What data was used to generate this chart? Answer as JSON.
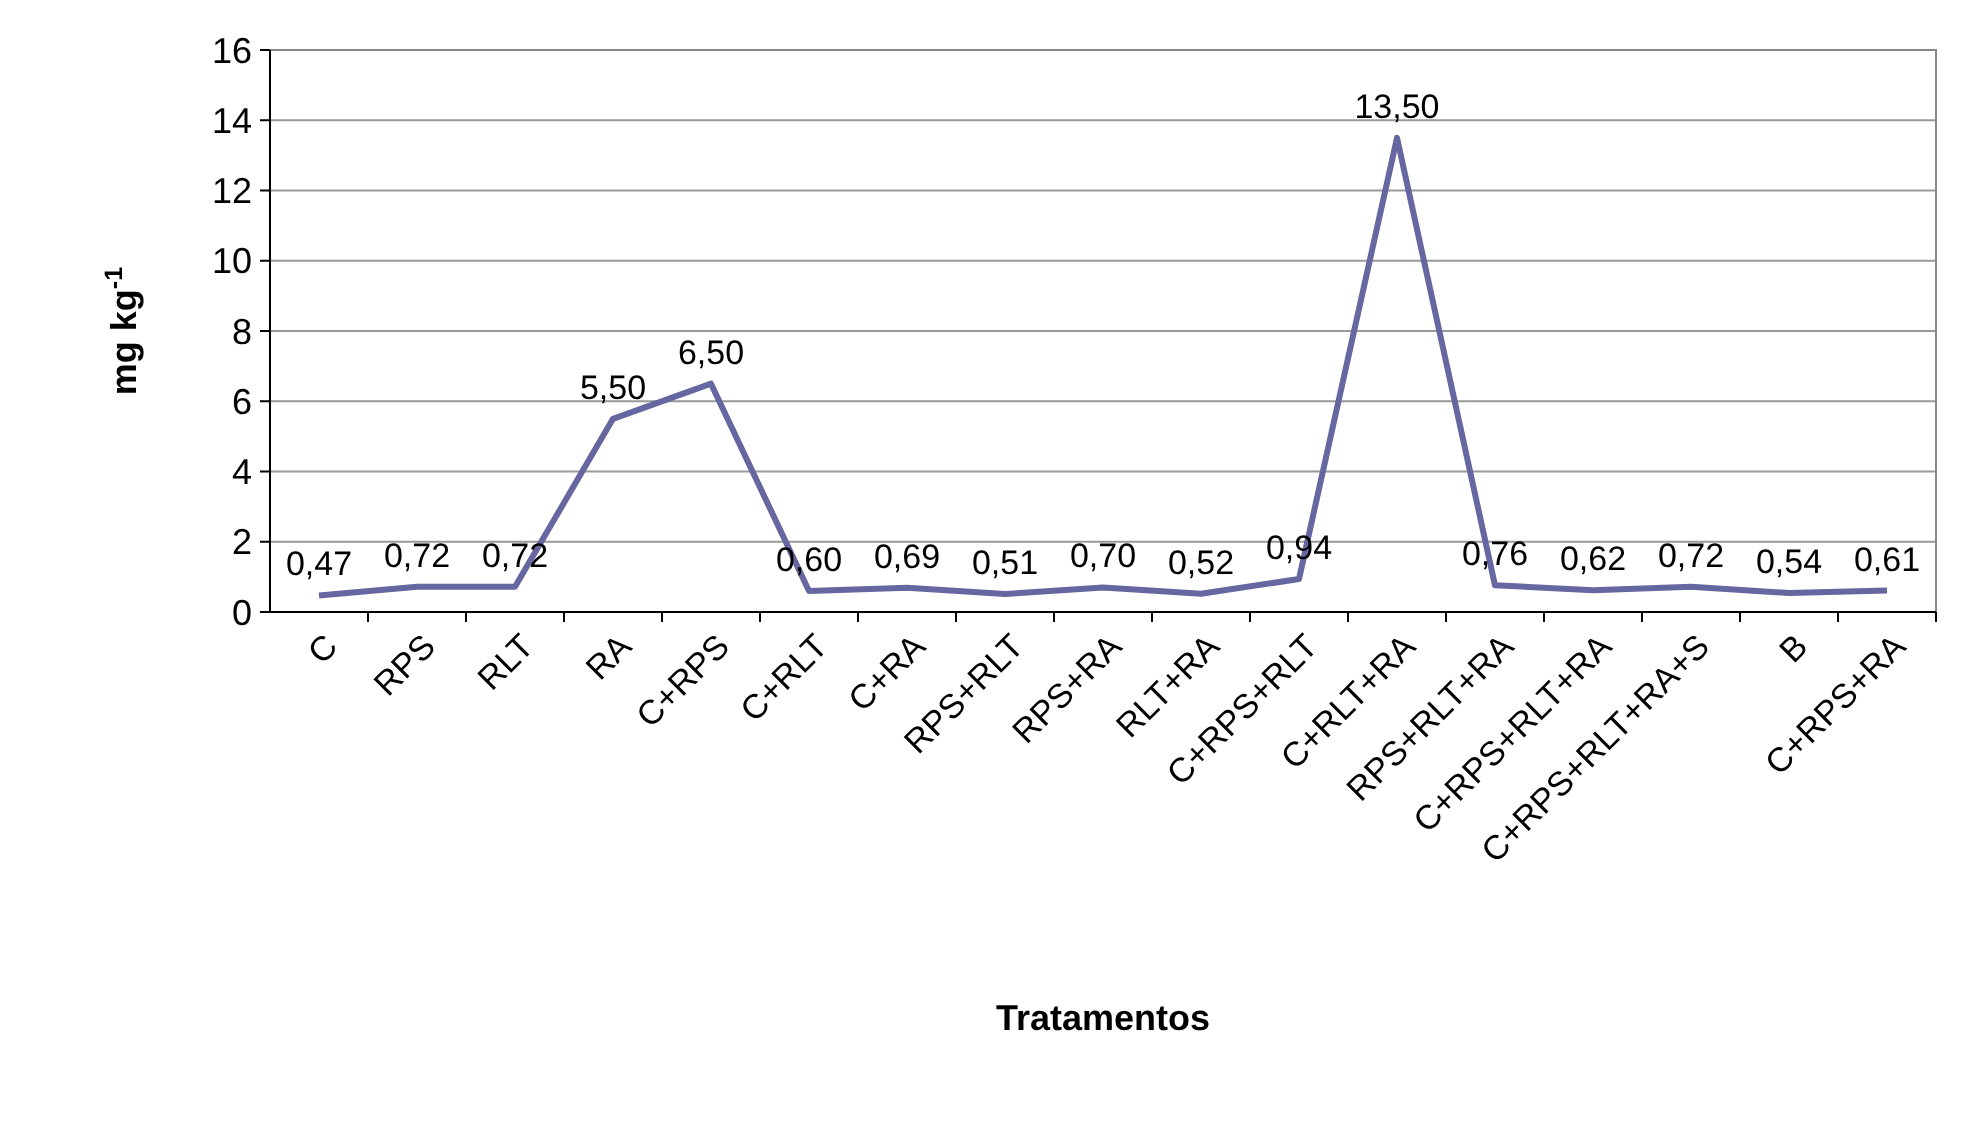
{
  "chart_data": {
    "type": "line",
    "xlabel": "Tratamentos",
    "ylabel": "mg kg$^{-1}$",
    "categories": [
      "C",
      "RPS",
      "RLT",
      "RA",
      "C+RPS",
      "C+RLT",
      "C+RA",
      "RPS+RLT",
      "RPS+RA",
      "RLT+RA",
      "C+RPS+RLT",
      "C+RLT+RA",
      "RPS+RLT+RA",
      "C+RPS+RLT+RA",
      "C+RPS+RLT+RA+S",
      "B",
      "C+RPS+RA"
    ],
    "series": [
      {
        "color": "#6666a0",
        "values": [
          0.47,
          0.72,
          0.72,
          5.5,
          6.5,
          0.6,
          0.69,
          0.51,
          0.7,
          0.52,
          0.94,
          13.5,
          0.76,
          0.62,
          0.72,
          0.54,
          0.61
        ],
        "value_labels": [
          "0,47",
          "0,72",
          "0,72",
          "5,50",
          "6,50",
          "0,60",
          "0,69",
          "0,51",
          "0,70",
          "0,52",
          "0,94",
          "13,50",
          "0,76",
          "0,62",
          "0,72",
          "0,54",
          "0,61"
        ]
      }
    ],
    "ylim": [
      0,
      16
    ],
    "yticks": [
      0,
      2,
      4,
      6,
      8,
      10,
      12,
      14,
      16
    ],
    "grid": "y",
    "marker": "none",
    "line_style": "solid"
  }
}
